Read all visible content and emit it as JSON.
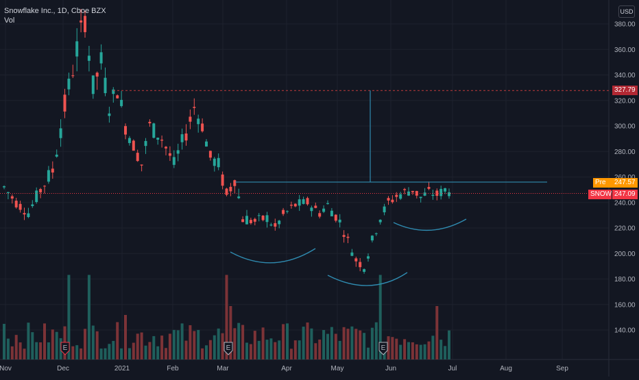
{
  "legend": {
    "symbol_line": "Snowflake Inc., 1D, Cboe BZX",
    "volume_label": "Vol"
  },
  "currency_button": "USD",
  "colors": {
    "background": "#131722",
    "grid": "#1e222d",
    "up": "#26a69a",
    "down": "#ef5350",
    "up_volume": "#1f5f5c",
    "down_volume": "#7c3337",
    "drawing": "#2f8bb0",
    "resistance": "#c23a3a",
    "premarket": "#ff9800",
    "last": "#f23645"
  },
  "price_tags": {
    "resistance": {
      "label": "",
      "value": "327.79"
    },
    "premarket": {
      "label": "Pre",
      "value": "247.57"
    },
    "last": {
      "label": "SNOW",
      "value": "247.09"
    }
  },
  "chart_data": {
    "type": "candlestick",
    "title": "Snowflake Inc., 1D, Cboe BZX",
    "y_axis_ticks": [
      140,
      160,
      180,
      200,
      220,
      240,
      260,
      280,
      300,
      320,
      340,
      360,
      380
    ],
    "x_axis_ticks": [
      "Nov",
      "Dec",
      "2021",
      "Feb",
      "Mar",
      "Apr",
      "May",
      "Jun",
      "Jul",
      "Aug",
      "Sep"
    ],
    "ylim": [
      118,
      390
    ],
    "grid": true,
    "events": [
      "E",
      "E",
      "E"
    ],
    "horizontal_lines": [
      327.79,
      256,
      247.09
    ],
    "series": [
      {
        "name": "SNOW",
        "anchors": [
          [
            0,
            252,
            4
          ],
          [
            3,
            240,
            3
          ],
          [
            6,
            232,
            3
          ],
          [
            9,
            250,
            4
          ],
          [
            12,
            265,
            5
          ],
          [
            14,
            300,
            7
          ],
          [
            16,
            330,
            7
          ],
          [
            18,
            360,
            8
          ],
          [
            20,
            385,
            8
          ],
          [
            22,
            330,
            7
          ],
          [
            24,
            350,
            7
          ],
          [
            26,
            315,
            5
          ],
          [
            28,
            330,
            6
          ],
          [
            30,
            300,
            5
          ],
          [
            32,
            285,
            4
          ],
          [
            34,
            270,
            4
          ],
          [
            36,
            300,
            5
          ],
          [
            39,
            290,
            4
          ],
          [
            42,
            270,
            4
          ],
          [
            45,
            295,
            5
          ],
          [
            47,
            315,
            5
          ],
          [
            49,
            300,
            4
          ],
          [
            51,
            275,
            4
          ],
          [
            53,
            270,
            4
          ],
          [
            55,
            245,
            5
          ],
          [
            57,
            260,
            5
          ],
          [
            59,
            228,
            4
          ],
          [
            62,
            225,
            3
          ],
          [
            65,
            228,
            3
          ],
          [
            67,
            220,
            3
          ],
          [
            69,
            230,
            3
          ],
          [
            72,
            238,
            3
          ],
          [
            75,
            240,
            3
          ],
          [
            78,
            232,
            3
          ],
          [
            80,
            238,
            3
          ],
          [
            83,
            225,
            3
          ],
          [
            85,
            210,
            3
          ],
          [
            87,
            195,
            3
          ],
          [
            89,
            190,
            3
          ],
          [
            91,
            210,
            3
          ],
          [
            93,
            228,
            3
          ],
          [
            95,
            240,
            3
          ],
          [
            97,
            245,
            3
          ],
          [
            99,
            248,
            3
          ],
          [
            101,
            250,
            3
          ],
          [
            103,
            244,
            3
          ],
          [
            105,
            248,
            3
          ],
          [
            107,
            246,
            3
          ],
          [
            109,
            250,
            3
          ],
          [
            110,
            248,
            3
          ]
        ]
      }
    ]
  }
}
